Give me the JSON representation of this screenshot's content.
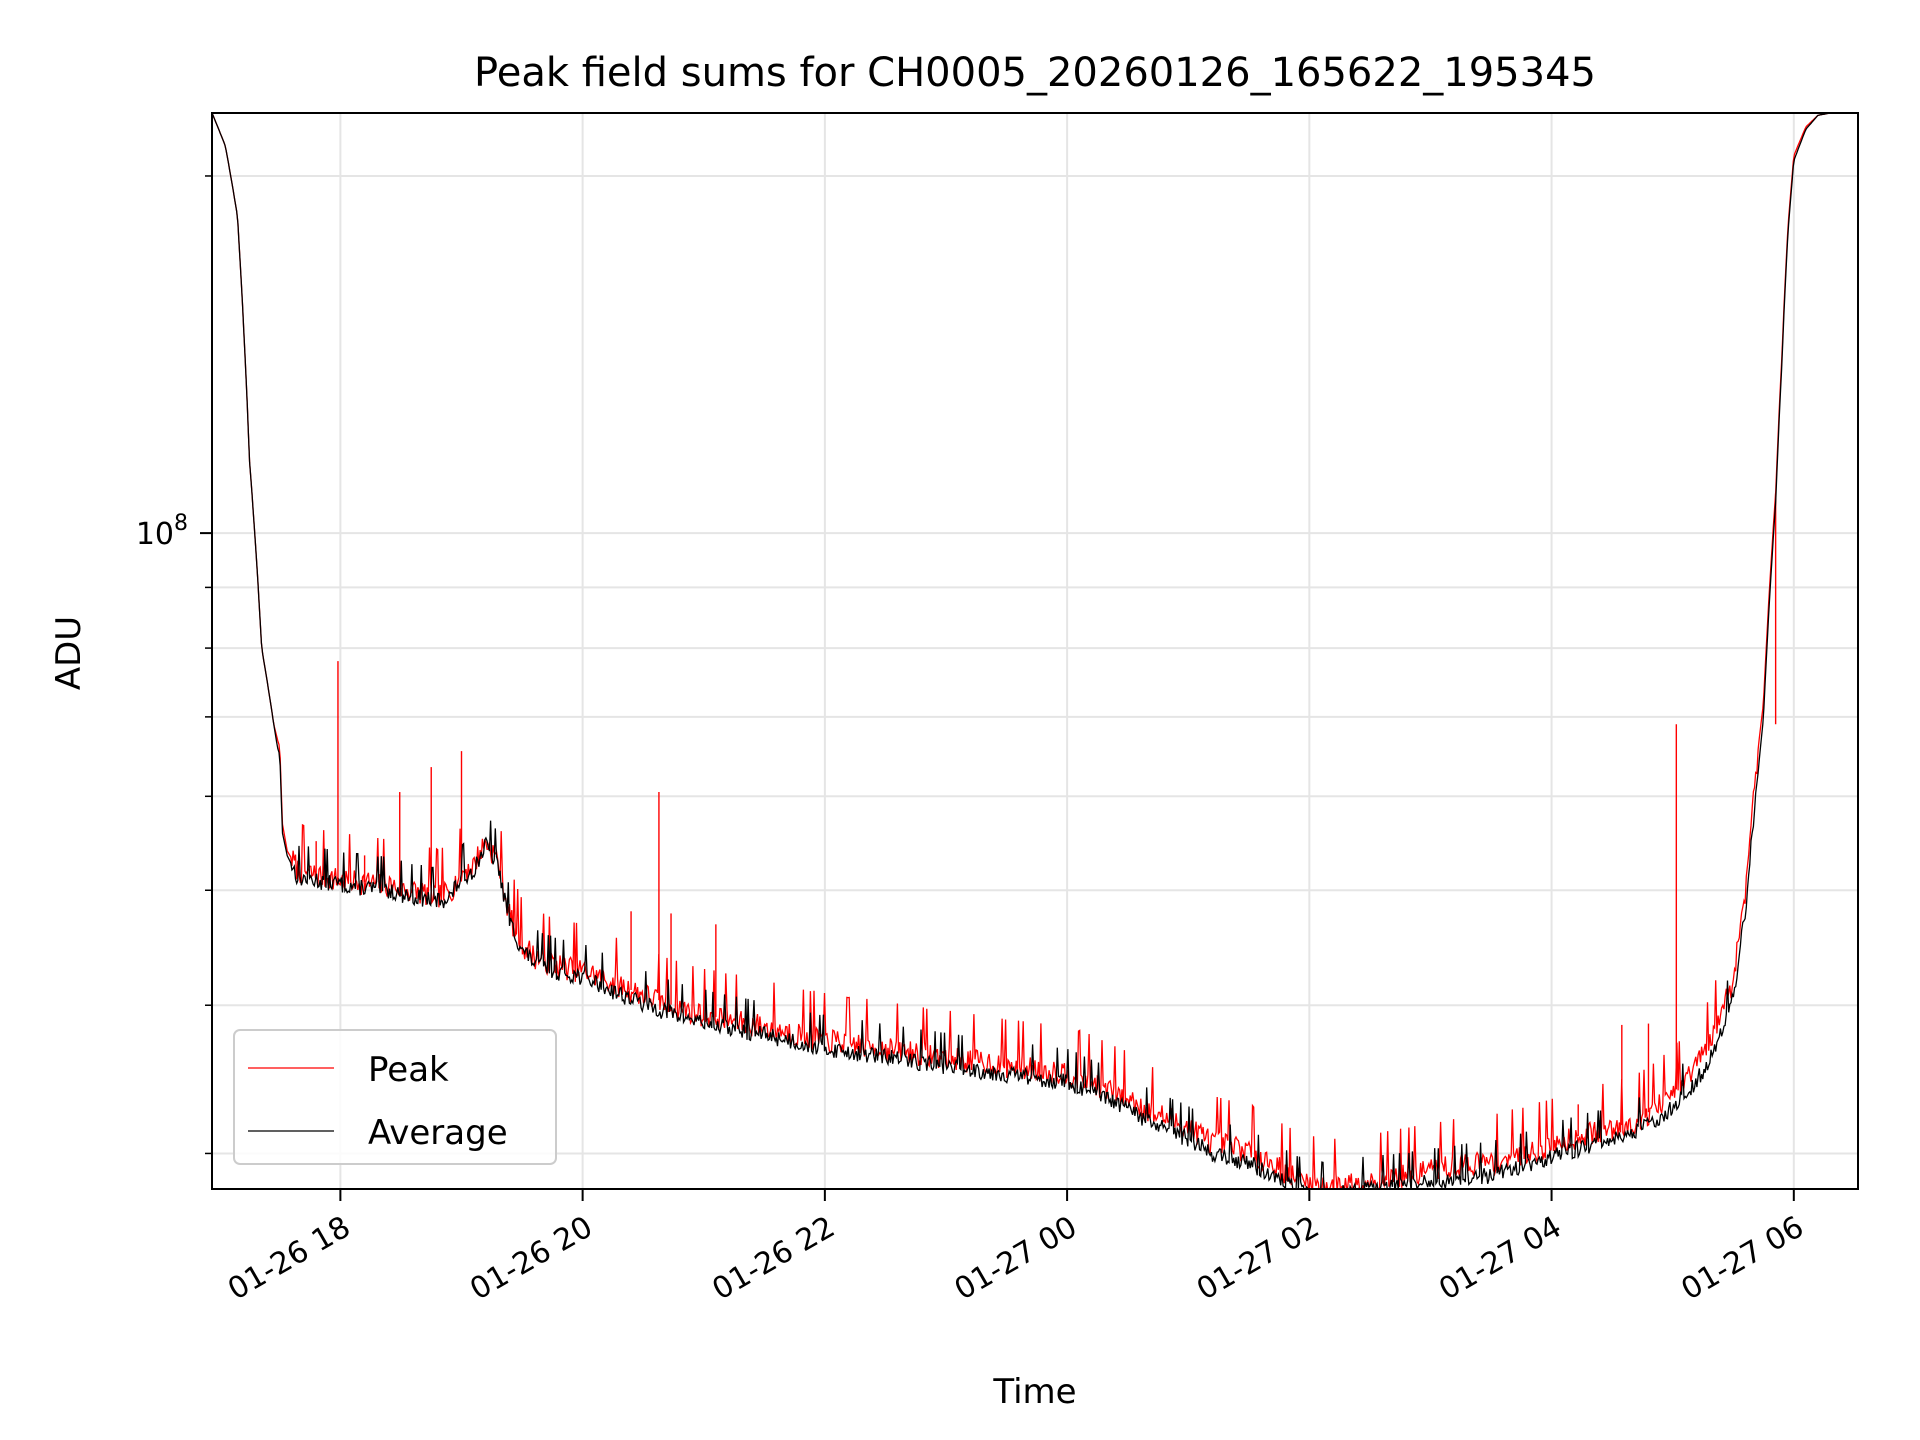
{
  "chart_data": {
    "type": "line",
    "title": "Peak field sums for CH0005_20260126_165622_195345",
    "xlabel": "Time",
    "ylabel": "ADU",
    "yscale": "log",
    "ylim": [
      28000000,
      226000000
    ],
    "xlim": [
      16.94,
      30.53
    ],
    "grid": true,
    "legend_position": "lower-left",
    "x_ticks": [
      {
        "value": 18,
        "label": "01-26 18"
      },
      {
        "value": 20,
        "label": "01-26 20"
      },
      {
        "value": 22,
        "label": "01-26 22"
      },
      {
        "value": 24,
        "label": "01-27 00"
      },
      {
        "value": 26,
        "label": "01-27 02"
      },
      {
        "value": 28,
        "label": "01-27 04"
      },
      {
        "value": 30,
        "label": "01-27 06"
      }
    ],
    "y_major_ticks": [
      {
        "value": 100000000,
        "base": "10",
        "exp": "8"
      }
    ],
    "y_minor_ticks": [
      30000000,
      40000000,
      50000000,
      60000000,
      70000000,
      80000000,
      90000000,
      200000000
    ],
    "series": [
      {
        "name": "Peak",
        "color": "#ff0000",
        "x_hours_since_midnight_jan26": [
          16.94,
          17.05,
          17.15,
          17.25,
          17.35,
          17.45,
          17.48,
          17.5,
          17.52,
          17.56,
          17.65,
          17.8,
          18.0,
          18.2,
          18.4,
          18.6,
          18.8,
          18.9,
          19.0,
          19.1,
          19.2,
          19.3,
          19.35,
          19.4,
          19.5,
          19.6,
          19.8,
          20.0,
          20.2,
          20.4,
          20.6,
          20.8,
          21.0,
          21.2,
          21.5,
          21.8,
          22.0,
          22.5,
          23.0,
          23.5,
          24.0,
          24.2,
          24.5,
          24.7,
          25.0,
          25.2,
          25.5,
          25.7,
          25.9,
          26.1,
          26.3,
          26.5,
          26.8,
          27.0,
          27.3,
          27.5,
          27.8,
          28.0,
          28.2,
          28.5,
          28.7,
          28.9,
          29.1,
          29.3,
          29.5,
          29.6,
          29.7,
          29.75,
          29.8,
          29.85,
          29.9,
          29.95,
          30.0,
          30.1,
          30.2,
          30.3,
          30.45,
          30.53
        ],
        "y": [
          226000000,
          212000000,
          185000000,
          115000000,
          80000000,
          69000000,
          67000000,
          66000000,
          57000000,
          54000000,
          52000000,
          51500000,
          51000000,
          50800000,
          50500000,
          49900000,
          49500000,
          49800000,
          51700000,
          52500000,
          55000000,
          53000000,
          50000000,
          47500000,
          45000000,
          44000000,
          43200000,
          42800000,
          42000000,
          41200000,
          40500000,
          39800000,
          39300000,
          38900000,
          38400000,
          37800000,
          37400000,
          36800000,
          36200000,
          35600000,
          35100000,
          34500000,
          33400000,
          32500000,
          31600000,
          30700000,
          30200000,
          29400000,
          28600000,
          28200000,
          28300000,
          28500000,
          28800000,
          29100000,
          29400000,
          29500000,
          30100000,
          30500000,
          31000000,
          31500000,
          32000000,
          33000000,
          34500000,
          37000000,
          42000000,
          50000000,
          65000000,
          72000000,
          90000000,
          108000000,
          140000000,
          180000000,
          208000000,
          220000000,
          225000000,
          226000000,
          226000000,
          226000000
        ],
        "spikes": [
          {
            "x": 17.5,
            "y": 66000000
          },
          {
            "x": 17.8,
            "y": 55000000
          },
          {
            "x": 17.98,
            "y": 78000000
          },
          {
            "x": 18.2,
            "y": 53500000
          },
          {
            "x": 18.49,
            "y": 60500000
          },
          {
            "x": 18.75,
            "y": 63500000
          },
          {
            "x": 19.0,
            "y": 65500000
          },
          {
            "x": 20.4,
            "y": 48000000
          },
          {
            "x": 20.63,
            "y": 60500000
          },
          {
            "x": 20.73,
            "y": 47800000
          },
          {
            "x": 21.1,
            "y": 46800000
          },
          {
            "x": 28.22,
            "y": 33000000
          },
          {
            "x": 28.58,
            "y": 38500000
          },
          {
            "x": 28.8,
            "y": 38600000
          },
          {
            "x": 29.03,
            "y": 69000000
          },
          {
            "x": 29.85,
            "y": 69000000
          }
        ]
      },
      {
        "name": "Average",
        "color": "#000000",
        "x_hours_since_midnight_jan26": [
          16.94,
          17.05,
          17.15,
          17.25,
          17.35,
          17.45,
          17.48,
          17.5,
          17.52,
          17.56,
          17.65,
          17.8,
          18.0,
          18.2,
          18.4,
          18.6,
          18.8,
          18.9,
          19.0,
          19.1,
          19.2,
          19.3,
          19.35,
          19.4,
          19.5,
          19.6,
          19.8,
          20.0,
          20.2,
          20.4,
          20.6,
          20.8,
          21.0,
          21.2,
          21.5,
          21.8,
          22.0,
          22.5,
          23.0,
          23.5,
          24.0,
          24.2,
          24.5,
          24.7,
          25.0,
          25.2,
          25.5,
          25.7,
          25.9,
          26.1,
          26.3,
          26.5,
          26.8,
          27.0,
          27.3,
          27.5,
          27.8,
          28.0,
          28.2,
          28.5,
          28.7,
          28.9,
          29.1,
          29.3,
          29.5,
          29.6,
          29.7,
          29.75,
          29.8,
          29.85,
          29.9,
          29.95,
          30.0,
          30.1,
          30.2,
          30.3,
          30.45,
          30.53
        ],
        "y": [
          226000000,
          212000000,
          185000000,
          115000000,
          80000000,
          69000000,
          66000000,
          65000000,
          56000000,
          53500000,
          51200000,
          51000000,
          50600000,
          50300000,
          50000000,
          49400000,
          49000000,
          49300000,
          51200000,
          52000000,
          54600000,
          52500000,
          49500000,
          47000000,
          44500000,
          43500000,
          42700000,
          42300000,
          41400000,
          40500000,
          39800000,
          39200000,
          38700000,
          38300000,
          37800000,
          37200000,
          36800000,
          36200000,
          35600000,
          35000000,
          34500000,
          33800000,
          32700000,
          31800000,
          30900000,
          30000000,
          29500000,
          28700000,
          28000000,
          27700000,
          27800000,
          28000000,
          28200000,
          28400000,
          28700000,
          28800000,
          29400000,
          29800000,
          30300000,
          30800000,
          31300000,
          32200000,
          33600000,
          35800000,
          40500000,
          48000000,
          62000000,
          70000000,
          88000000,
          106000000,
          138000000,
          178000000,
          206000000,
          219000000,
          225000000,
          226000000,
          226000000,
          226000000
        ]
      }
    ]
  }
}
